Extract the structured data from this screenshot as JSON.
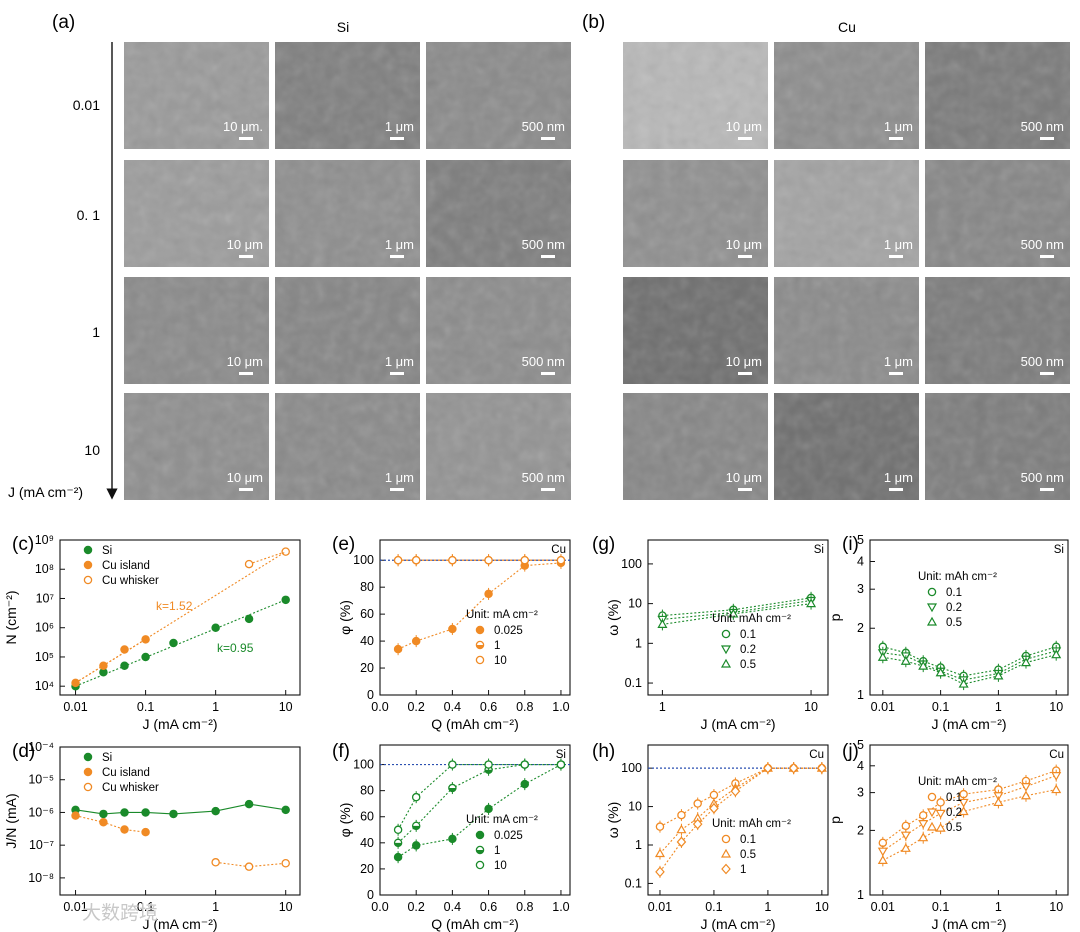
{
  "panels": {
    "a": {
      "letter": "(a)",
      "title": "Si"
    },
    "b": {
      "letter": "(b)",
      "title": "Cu"
    },
    "c": {
      "letter": "(c)"
    },
    "d": {
      "letter": "(d)"
    },
    "e": {
      "letter": "(e)",
      "corner": "Cu"
    },
    "f": {
      "letter": "(f)",
      "corner": "Si"
    },
    "g": {
      "letter": "(g)",
      "corner": "Si"
    },
    "h": {
      "letter": "(h)",
      "corner": "Cu"
    },
    "i": {
      "letter": "(i)",
      "corner": "Si"
    },
    "j": {
      "letter": "(j)",
      "corner": "Cu"
    }
  },
  "sem": {
    "row_labels": [
      "0.01",
      "0. 1",
      "1",
      "10"
    ],
    "axis_label": "J (mA cm⁻²)",
    "scale_bars": [
      "10 μm",
      "1 μm",
      "500 nm"
    ],
    "first_scale": [
      "10 μm.",
      "1 μm",
      "500 nm"
    ]
  },
  "colors": {
    "green": "#1a8a2a",
    "orange": "#f08a24",
    "blue_dash": "#2a4fb0"
  },
  "chart_data": [
    {
      "id": "c",
      "type": "scatter",
      "xlabel": "J (mA cm⁻²)",
      "ylabel": "N (cm⁻²)",
      "xscale": "log",
      "yscale": "log",
      "xlim": [
        0.006,
        16
      ],
      "ylim": [
        5000,
        1000000000.0
      ],
      "xticks": [
        "0.01",
        "0.1",
        "1",
        "10"
      ],
      "yticks": [
        "10⁴",
        "10⁵",
        "10⁶",
        "10⁷",
        "10⁸",
        "10⁹"
      ],
      "legend": [
        "Si",
        "Cu island",
        "Cu whisker"
      ],
      "annotations": [
        "k=1.52",
        "k=0.95"
      ],
      "series": [
        {
          "name": "Si",
          "x": [
            0.01,
            0.025,
            0.05,
            0.1,
            0.25,
            1,
            3,
            10
          ],
          "y": [
            10000,
            30000,
            50000,
            100000,
            300000,
            1000000,
            2000000,
            9000000
          ]
        },
        {
          "name": "Cu island",
          "x": [
            0.01,
            0.025,
            0.05,
            0.1
          ],
          "y": [
            13000,
            50000,
            180000,
            400000
          ]
        },
        {
          "name": "Cu whisker",
          "x": [
            3,
            10
          ],
          "y": [
            150000000,
            400000000
          ]
        }
      ]
    },
    {
      "id": "d",
      "type": "line",
      "xlabel": "J (mA cm⁻²)",
      "ylabel": "J/N (mA)",
      "xscale": "log",
      "yscale": "log",
      "xlim": [
        0.006,
        16
      ],
      "ylim": [
        3e-09,
        0.0001
      ],
      "xticks": [
        "0.01",
        "0.1",
        "1",
        "10"
      ],
      "yticks": [
        "10⁻⁸",
        "10⁻⁷",
        "10⁻⁶",
        "10⁻⁵",
        "10⁻⁴"
      ],
      "legend": [
        "Si",
        "Cu island",
        "Cu whisker"
      ],
      "series": [
        {
          "name": "Si",
          "x": [
            0.01,
            0.025,
            0.05,
            0.1,
            0.25,
            1,
            3,
            10
          ],
          "y": [
            1.2e-06,
            9e-07,
            1e-06,
            1e-06,
            9e-07,
            1.1e-06,
            1.8e-06,
            1.2e-06
          ]
        },
        {
          "name": "Cu island",
          "x": [
            0.01,
            0.025,
            0.05,
            0.1
          ],
          "y": [
            8e-07,
            5e-07,
            3e-07,
            2.5e-07
          ]
        },
        {
          "name": "Cu whisker",
          "x": [
            1,
            3,
            10
          ],
          "y": [
            3e-08,
            2.2e-08,
            2.8e-08
          ]
        }
      ]
    },
    {
      "id": "e",
      "type": "scatter",
      "xlabel": "Q (mAh cm⁻²)",
      "ylabel": "φ (%)",
      "xlim": [
        0,
        1.05
      ],
      "ylim": [
        0,
        115
      ],
      "xticks": [
        "0.0",
        "0.2",
        "0.4",
        "0.6",
        "0.8",
        "1.0"
      ],
      "yticks": [
        "0",
        "20",
        "40",
        "60",
        "80",
        "100"
      ],
      "legend_title": "Unit: mA cm⁻²",
      "legend": [
        "0.025",
        "1",
        "10"
      ],
      "series": [
        {
          "name": "0.025",
          "x": [
            0.1,
            0.2,
            0.4,
            0.6,
            0.8,
            1.0
          ],
          "y": [
            34,
            40,
            49,
            75,
            96,
            98
          ]
        },
        {
          "name": "1",
          "x": [
            0.1,
            0.2,
            0.4,
            0.6,
            0.8,
            1.0
          ],
          "y": [
            100,
            100,
            100,
            100,
            100,
            100
          ]
        },
        {
          "name": "10",
          "x": [
            0.1,
            0.2,
            0.4,
            0.6,
            0.8,
            1.0
          ],
          "y": [
            100,
            100,
            100,
            100,
            100,
            100
          ]
        }
      ]
    },
    {
      "id": "f",
      "type": "scatter",
      "xlabel": "Q (mAh cm⁻²)",
      "ylabel": "φ (%)",
      "xlim": [
        0,
        1.05
      ],
      "ylim": [
        0,
        115
      ],
      "xticks": [
        "0.0",
        "0.2",
        "0.4",
        "0.6",
        "0.8",
        "1.0"
      ],
      "yticks": [
        "0",
        "20",
        "40",
        "60",
        "80",
        "100"
      ],
      "legend_title": "Unit: mA cm⁻²",
      "legend": [
        "0.025",
        "1",
        "10"
      ],
      "series": [
        {
          "name": "0.025",
          "x": [
            0.1,
            0.2,
            0.4,
            0.6,
            0.8,
            1.0
          ],
          "y": [
            29,
            38,
            43,
            66,
            85,
            100
          ]
        },
        {
          "name": "1",
          "x": [
            0.1,
            0.2,
            0.4,
            0.6,
            0.8,
            1.0
          ],
          "y": [
            40,
            53,
            82,
            96,
            100,
            100
          ]
        },
        {
          "name": "10",
          "x": [
            0.1,
            0.2,
            0.4,
            0.6,
            0.8,
            1.0
          ],
          "y": [
            50,
            75,
            100,
            100,
            100,
            100
          ]
        }
      ]
    },
    {
      "id": "g",
      "type": "scatter",
      "xlabel": "J (mA cm⁻²)",
      "ylabel": "ω (%)",
      "xscale": "log",
      "yscale": "log",
      "xlim": [
        0.8,
        13
      ],
      "ylim": [
        0.05,
        400
      ],
      "xticks": [
        "1",
        "10"
      ],
      "yticks": [
        "0.1",
        "1",
        "10",
        "100"
      ],
      "legend_title": "Unit: mAh cm⁻²",
      "legend": [
        "0.1",
        "0.2",
        "0.5"
      ],
      "series": [
        {
          "name": "0.1",
          "x": [
            1,
            3,
            10
          ],
          "y": [
            5,
            7,
            14
          ]
        },
        {
          "name": "0.2",
          "x": [
            1,
            3,
            10
          ],
          "y": [
            4,
            6,
            12
          ]
        },
        {
          "name": "0.5",
          "x": [
            1,
            3,
            10
          ],
          "y": [
            3,
            5.5,
            10
          ]
        }
      ]
    },
    {
      "id": "h",
      "type": "scatter",
      "xlabel": "J (mA cm⁻²)",
      "ylabel": "ω (%)",
      "xscale": "log",
      "yscale": "log",
      "xlim": [
        0.006,
        13
      ],
      "ylim": [
        0.05,
        400
      ],
      "xticks": [
        "0.01",
        "0.1",
        "1",
        "10"
      ],
      "yticks": [
        "0.1",
        "1",
        "10",
        "100"
      ],
      "legend_title": "Unit: mAh cm⁻²",
      "legend": [
        "0.1",
        "0.5",
        "1"
      ],
      "series": [
        {
          "name": "0.1",
          "x": [
            0.01,
            0.025,
            0.05,
            0.1,
            0.25,
            1,
            3,
            10
          ],
          "y": [
            3,
            6,
            12,
            20,
            40,
            100,
            100,
            100
          ]
        },
        {
          "name": "0.5",
          "x": [
            0.01,
            0.025,
            0.05,
            0.1,
            0.25,
            1,
            3,
            10
          ],
          "y": [
            0.6,
            2.5,
            5,
            12,
            30,
            100,
            100,
            100
          ]
        },
        {
          "name": "1",
          "x": [
            0.01,
            0.025,
            0.05,
            0.1,
            0.25,
            1,
            3,
            10
          ],
          "y": [
            0.2,
            1.2,
            3.5,
            9,
            25,
            100,
            100,
            100
          ]
        }
      ]
    },
    {
      "id": "i",
      "type": "scatter",
      "xlabel": "J (mA cm⁻²)",
      "ylabel": "p",
      "xscale": "log",
      "yscale": "log",
      "xlim": [
        0.006,
        16
      ],
      "ylim": [
        1,
        5
      ],
      "xticks": [
        "0.01",
        "0.1",
        "1",
        "10"
      ],
      "yticks": [
        "1",
        "2",
        "3",
        "4",
        "5"
      ],
      "legend_title": "Unit: mAh cm⁻²",
      "legend": [
        "0.1",
        "0.2",
        "0.5"
      ],
      "series": [
        {
          "name": "0.1",
          "x": [
            0.01,
            0.025,
            0.05,
            0.1,
            0.25,
            1,
            3,
            10
          ],
          "y": [
            1.65,
            1.55,
            1.42,
            1.33,
            1.22,
            1.3,
            1.5,
            1.65
          ]
        },
        {
          "name": "0.2",
          "x": [
            0.01,
            0.025,
            0.05,
            0.1,
            0.25,
            1,
            3,
            10
          ],
          "y": [
            1.55,
            1.5,
            1.38,
            1.28,
            1.17,
            1.25,
            1.45,
            1.58
          ]
        },
        {
          "name": "0.5",
          "x": [
            0.01,
            0.025,
            0.05,
            0.1,
            0.25,
            1,
            3,
            10
          ],
          "y": [
            1.48,
            1.42,
            1.35,
            1.26,
            1.12,
            1.22,
            1.4,
            1.52
          ]
        }
      ]
    },
    {
      "id": "j",
      "type": "scatter",
      "xlabel": "J (mA cm⁻²)",
      "ylabel": "p",
      "xscale": "log",
      "yscale": "log",
      "xlim": [
        0.006,
        16
      ],
      "ylim": [
        1,
        5
      ],
      "xticks": [
        "0.01",
        "0.1",
        "1",
        "10"
      ],
      "yticks": [
        "1",
        "2",
        "3",
        "4",
        "5"
      ],
      "legend_title": "Unit: mAh cm⁻²",
      "legend": [
        "0.1",
        "0.2",
        "0.5"
      ],
      "series": [
        {
          "name": "0.1",
          "x": [
            0.01,
            0.025,
            0.05,
            0.1,
            0.25,
            1,
            3,
            10
          ],
          "y": [
            1.75,
            2.1,
            2.35,
            2.7,
            2.95,
            3.1,
            3.4,
            3.8
          ]
        },
        {
          "name": "0.2",
          "x": [
            0.01,
            0.025,
            0.05,
            0.1,
            0.25,
            1,
            3,
            10
          ],
          "y": [
            1.6,
            1.9,
            2.15,
            2.4,
            2.7,
            2.9,
            3.2,
            3.6
          ]
        },
        {
          "name": "0.5",
          "x": [
            0.01,
            0.025,
            0.05,
            0.1,
            0.25,
            1,
            3,
            10
          ],
          "y": [
            1.45,
            1.65,
            1.85,
            2.05,
            2.45,
            2.7,
            2.9,
            3.1
          ]
        }
      ]
    }
  ],
  "watermark": "大数跨境"
}
